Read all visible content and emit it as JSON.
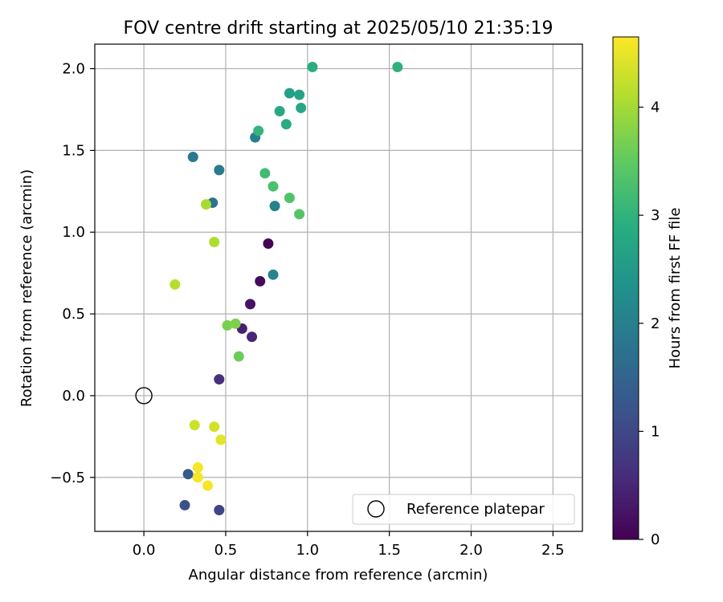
{
  "chart_data": {
    "type": "scatter",
    "title": "FOV centre drift starting at 2025/05/10 21:35:19",
    "xlabel": "Angular distance from reference (arcmin)",
    "ylabel": "Rotation from reference (arcmin)",
    "xlim": [
      -0.3,
      2.68
    ],
    "ylim": [
      -0.83,
      2.15
    ],
    "xticks": [
      0.0,
      0.5,
      1.0,
      1.5,
      2.0,
      2.5
    ],
    "xtick_labels": [
      "0.0",
      "0.5",
      "1.0",
      "1.5",
      "2.0",
      "2.5"
    ],
    "yticks": [
      -0.5,
      0.0,
      0.5,
      1.0,
      1.5,
      2.0
    ],
    "ytick_labels": [
      "−0.5",
      "0.0",
      "0.5",
      "1.0",
      "1.5",
      "2.0"
    ],
    "grid": true,
    "legend": {
      "placement": "bottom-right",
      "entries": [
        "Reference platepar"
      ]
    },
    "reference_point": {
      "x": 0.0,
      "y": 0.0,
      "label": "Reference platepar"
    },
    "colorbar": {
      "label": "Hours from first FF file",
      "range": [
        0,
        4.65
      ],
      "ticks": [
        0,
        1,
        2,
        3,
        4
      ],
      "tick_labels": [
        "0",
        "1",
        "2",
        "3",
        "4"
      ],
      "colormap": "viridis"
    },
    "points": [
      {
        "x": 0.76,
        "y": 0.93,
        "hours": 0.05
      },
      {
        "x": 0.71,
        "y": 0.7,
        "hours": 0.15
      },
      {
        "x": 0.65,
        "y": 0.56,
        "hours": 0.25
      },
      {
        "x": 0.6,
        "y": 0.41,
        "hours": 0.4
      },
      {
        "x": 0.66,
        "y": 0.36,
        "hours": 0.5
      },
      {
        "x": 0.46,
        "y": 0.1,
        "hours": 0.65
      },
      {
        "x": 0.46,
        "y": -0.7,
        "hours": 0.95
      },
      {
        "x": 0.25,
        "y": -0.67,
        "hours": 1.15
      },
      {
        "x": 0.27,
        "y": -0.48,
        "hours": 1.35
      },
      {
        "x": 0.42,
        "y": 1.18,
        "hours": 1.75
      },
      {
        "x": 0.3,
        "y": 1.46,
        "hours": 1.85
      },
      {
        "x": 0.46,
        "y": 1.38,
        "hours": 1.9
      },
      {
        "x": 0.68,
        "y": 1.58,
        "hours": 2.0
      },
      {
        "x": 0.8,
        "y": 1.16,
        "hours": 2.05
      },
      {
        "x": 0.79,
        "y": 0.74,
        "hours": 2.1
      },
      {
        "x": 0.89,
        "y": 1.85,
        "hours": 2.65
      },
      {
        "x": 0.95,
        "y": 1.84,
        "hours": 2.7
      },
      {
        "x": 0.96,
        "y": 1.76,
        "hours": 2.75
      },
      {
        "x": 0.83,
        "y": 1.74,
        "hours": 2.8
      },
      {
        "x": 0.87,
        "y": 1.66,
        "hours": 2.85
      },
      {
        "x": 1.03,
        "y": 2.01,
        "hours": 2.9
      },
      {
        "x": 1.55,
        "y": 2.01,
        "hours": 2.95
      },
      {
        "x": 0.7,
        "y": 1.62,
        "hours": 3.05
      },
      {
        "x": 0.74,
        "y": 1.36,
        "hours": 3.2
      },
      {
        "x": 0.79,
        "y": 1.28,
        "hours": 3.3
      },
      {
        "x": 0.89,
        "y": 1.21,
        "hours": 3.35
      },
      {
        "x": 0.95,
        "y": 1.11,
        "hours": 3.4
      },
      {
        "x": 0.58,
        "y": 0.24,
        "hours": 3.6
      },
      {
        "x": 0.51,
        "y": 0.43,
        "hours": 3.7
      },
      {
        "x": 0.56,
        "y": 0.44,
        "hours": 3.75
      },
      {
        "x": 0.38,
        "y": 1.17,
        "hours": 4.05
      },
      {
        "x": 0.43,
        "y": 0.94,
        "hours": 4.1
      },
      {
        "x": 0.19,
        "y": 0.68,
        "hours": 4.15
      },
      {
        "x": 0.31,
        "y": -0.18,
        "hours": 4.3
      },
      {
        "x": 0.43,
        "y": -0.19,
        "hours": 4.35
      },
      {
        "x": 0.47,
        "y": -0.27,
        "hours": 4.45
      },
      {
        "x": 0.33,
        "y": -0.44,
        "hours": 4.6
      },
      {
        "x": 0.33,
        "y": -0.5,
        "hours": 4.6
      },
      {
        "x": 0.39,
        "y": -0.55,
        "hours": 4.6
      }
    ]
  }
}
